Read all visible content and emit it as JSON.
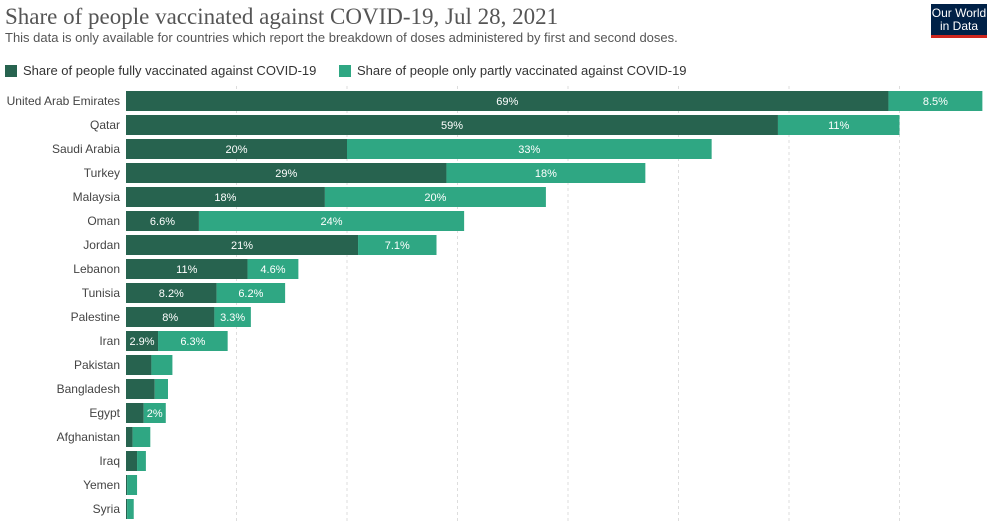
{
  "header": {
    "title": "Share of people vaccinated against COVID-19, Jul 28, 2021",
    "subtitle": "This data is only available for countries which report the breakdown of doses administered by first and second doses."
  },
  "logo": {
    "line1": "Our World",
    "line2": "in Data"
  },
  "colors": {
    "fully": "#27634f",
    "partly": "#2fa783",
    "grid": "#dddddd"
  },
  "chart_data": {
    "type": "bar",
    "orientation": "horizontal",
    "stacked": true,
    "title": "Share of people vaccinated against COVID-19, Jul 28, 2021",
    "subtitle": "This data is only available for countries which report the breakdown of doses administered by first and second doses.",
    "legend_position": "top-left",
    "grid": "vertical-dashed",
    "xlim": [
      0,
      78
    ],
    "categories": [
      "United Arab Emirates",
      "Qatar",
      "Saudi Arabia",
      "Turkey",
      "Malaysia",
      "Oman",
      "Jordan",
      "Lebanon",
      "Tunisia",
      "Palestine",
      "Iran",
      "Pakistan",
      "Bangladesh",
      "Egypt",
      "Afghanistan",
      "Iraq",
      "Yemen",
      "Syria"
    ],
    "series": [
      {
        "name": "Share of people fully vaccinated against COVID-19",
        "values": [
          69,
          59,
          20,
          29,
          18,
          6.6,
          21,
          11,
          8.2,
          8,
          2.9,
          2.3,
          2.6,
          1.6,
          0.6,
          1,
          0.1,
          0.1
        ],
        "labels": [
          "69%",
          "59%",
          "20%",
          "29%",
          "18%",
          "6.6%",
          "21%",
          "11%",
          "8.2%",
          "8%",
          "2.9%",
          "",
          "",
          "",
          "",
          "",
          "",
          ""
        ]
      },
      {
        "name": "Share of people only partly vaccinated against COVID-19",
        "values": [
          8.5,
          11,
          33,
          18,
          20,
          24,
          7.1,
          4.6,
          6.2,
          3.3,
          6.3,
          1.9,
          1.2,
          2,
          1.6,
          0.8,
          0.9,
          0.6
        ],
        "labels": [
          "8.5%",
          "11%",
          "33%",
          "18%",
          "20%",
          "24%",
          "7.1%",
          "4.6%",
          "6.2%",
          "3.3%",
          "6.3%",
          "",
          "",
          "2%",
          "",
          "",
          "",
          ""
        ]
      }
    ]
  }
}
